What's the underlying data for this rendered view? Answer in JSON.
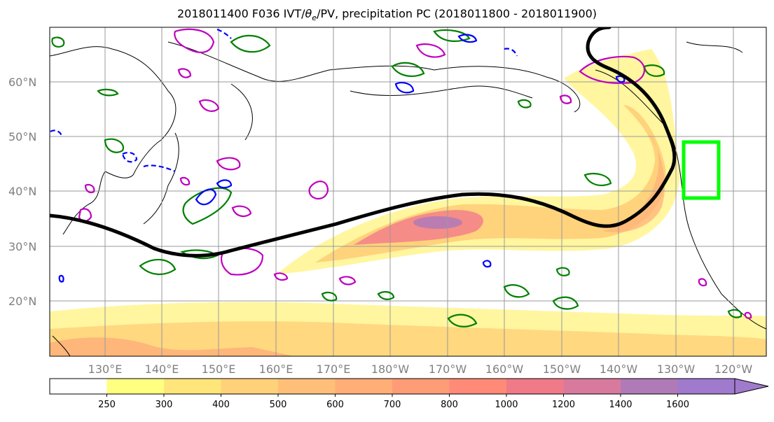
{
  "title": {
    "prefix": "2018011400 F036 IVT/",
    "theta_symbol": "θ",
    "theta_subscript": "e",
    "suffix": "/PV, precipitation PC (2018011800 - 2018011900)"
  },
  "map": {
    "lat_labels": [
      "20°N",
      "30°N",
      "40°N",
      "50°N",
      "60°N"
    ],
    "lon_labels": [
      "130°E",
      "140°E",
      "150°E",
      "160°E",
      "170°E",
      "180°W",
      "170°W",
      "160°W",
      "150°W",
      "140°W",
      "130°W",
      "120°W"
    ],
    "colors": {
      "ar_axis": "#000000",
      "green_contours": "#008000",
      "magenta_contours": "#bf00bf",
      "blue_contours": "#0000ff",
      "target_box": "#00ff00"
    }
  },
  "colorbar": {
    "labels": [
      "250",
      "300",
      "400",
      "500",
      "600",
      "700",
      "800",
      "1000",
      "1200",
      "1400",
      "1600"
    ],
    "colors": [
      "#ffffff",
      "#ffff80",
      "#ffe57a",
      "#ffd27a",
      "#ffbf78",
      "#ffae78",
      "#ff9c78",
      "#ff8a78",
      "#f07a88",
      "#d87a9e",
      "#b07ab8",
      "#a07acc"
    ],
    "extend": "max"
  }
}
